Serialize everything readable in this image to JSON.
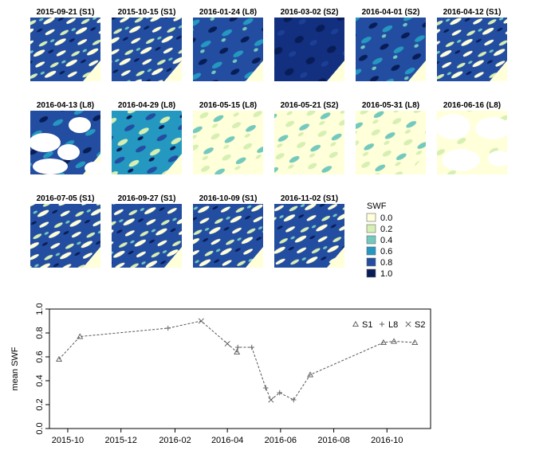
{
  "panels": [
    {
      "title": "2015-09-21 (S1)",
      "pattern": "S1"
    },
    {
      "title": "2015-10-15 (S1)",
      "pattern": "S1"
    },
    {
      "title": "2016-01-24 (L8)",
      "pattern": "dark"
    },
    {
      "title": "2016-03-02 (S2)",
      "pattern": "darkest"
    },
    {
      "title": "2016-04-01 (S2)",
      "pattern": "dark"
    },
    {
      "title": "2016-04-12 (S1)",
      "pattern": "S1"
    },
    {
      "title": "2016-04-13 (L8)",
      "pattern": "cloudy"
    },
    {
      "title": "2016-04-29 (L8)",
      "pattern": "mid"
    },
    {
      "title": "2016-05-15 (L8)",
      "pattern": "light"
    },
    {
      "title": "2016-05-21 (S2)",
      "pattern": "light"
    },
    {
      "title": "2016-05-31 (L8)",
      "pattern": "light"
    },
    {
      "title": "2016-06-16 (L8)",
      "pattern": "cloudy-light"
    },
    {
      "title": "2016-07-05 (S1)",
      "pattern": "S1"
    },
    {
      "title": "2016-09-27 (S1)",
      "pattern": "S1"
    },
    {
      "title": "2016-10-09 (S1)",
      "pattern": "S1"
    },
    {
      "title": "2016-11-02 (S1)",
      "pattern": "S1"
    }
  ],
  "map_legend": {
    "title": "SWF",
    "items": [
      {
        "label": "0.0",
        "color": "#ffffd9"
      },
      {
        "label": "0.2",
        "color": "#d6efb3"
      },
      {
        "label": "0.4",
        "color": "#73c9bd"
      },
      {
        "label": "0.6",
        "color": "#2498c1"
      },
      {
        "label": "0.8",
        "color": "#234da0"
      },
      {
        "label": "1.0",
        "color": "#081d58"
      }
    ]
  },
  "chart_data": {
    "type": "line",
    "ylabel": "mean SWF",
    "xlabel": "",
    "ylim": [
      0.0,
      1.0
    ],
    "yticks": [
      "0.0",
      "0.2",
      "0.4",
      "0.6",
      "0.8",
      "1.0"
    ],
    "xlim": [
      "2015-09-10",
      "2016-11-20"
    ],
    "xticks": [
      {
        "date": "2015-10-01",
        "label": "2015-10"
      },
      {
        "date": "2015-12-01",
        "label": "2015-12"
      },
      {
        "date": "2016-02-01",
        "label": "2016-02"
      },
      {
        "date": "2016-04-01",
        "label": "2016-04"
      },
      {
        "date": "2016-06-01",
        "label": "2016-06"
      },
      {
        "date": "2016-08-01",
        "label": "2016-08"
      },
      {
        "date": "2016-10-01",
        "label": "2016-10"
      }
    ],
    "line_style": "dashed",
    "grid": false,
    "legend_position": "top-right",
    "legend": [
      {
        "label": "S1",
        "marker": "triangle"
      },
      {
        "label": "L8",
        "marker": "plus"
      },
      {
        "label": "S2",
        "marker": "cross"
      }
    ],
    "points": [
      {
        "x": "2015-09-21",
        "y": 0.58,
        "sensor": "S1"
      },
      {
        "x": "2015-10-15",
        "y": 0.77,
        "sensor": "S1"
      },
      {
        "x": "2016-01-24",
        "y": 0.84,
        "sensor": "L8"
      },
      {
        "x": "2016-03-02",
        "y": 0.9,
        "sensor": "S2"
      },
      {
        "x": "2016-04-01",
        "y": 0.71,
        "sensor": "S2"
      },
      {
        "x": "2016-04-12",
        "y": 0.64,
        "sensor": "S1"
      },
      {
        "x": "2016-04-13",
        "y": 0.68,
        "sensor": "L8"
      },
      {
        "x": "2016-04-29",
        "y": 0.68,
        "sensor": "L8"
      },
      {
        "x": "2016-05-15",
        "y": 0.34,
        "sensor": "L8"
      },
      {
        "x": "2016-05-21",
        "y": 0.24,
        "sensor": "S2"
      },
      {
        "x": "2016-05-31",
        "y": 0.3,
        "sensor": "L8"
      },
      {
        "x": "2016-06-16",
        "y": 0.24,
        "sensor": "L8"
      },
      {
        "x": "2016-07-05",
        "y": 0.45,
        "sensor": "S1"
      },
      {
        "x": "2016-09-27",
        "y": 0.72,
        "sensor": "S1"
      },
      {
        "x": "2016-10-09",
        "y": 0.73,
        "sensor": "S1"
      },
      {
        "x": "2016-11-02",
        "y": 0.72,
        "sensor": "S1"
      }
    ]
  }
}
